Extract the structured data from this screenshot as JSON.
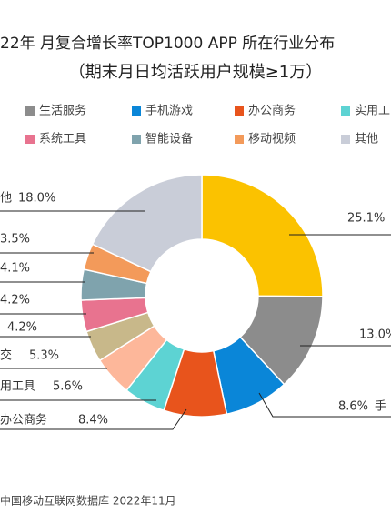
{
  "chart_data": {
    "type": "pie",
    "title": "22年 月复合增长率TOP1000 APP 所在行业分布",
    "subtitle": "（期末月日均活跃用户规模≥1万）",
    "legend": [
      {
        "name": "生活服务",
        "color": "#8c8c8c"
      },
      {
        "name": "手机游戏",
        "color": "#0a86d8"
      },
      {
        "name": "办公商务",
        "color": "#e8541c"
      },
      {
        "name": "实用工",
        "color": "#5dd3d3"
      },
      {
        "name": "系统工具",
        "color": "#e8738f"
      },
      {
        "name": "智能设备",
        "color": "#7fa3ad"
      },
      {
        "name": "移动视频",
        "color": "#f39a5a"
      },
      {
        "name": "其他",
        "color": "#c9cdd8"
      }
    ],
    "categories": [
      null,
      null,
      "手",
      "办公商务",
      "用工具",
      "交",
      null,
      null,
      null,
      null,
      "他"
    ],
    "values": [
      25.1,
      13.0,
      8.6,
      8.4,
      5.6,
      5.3,
      4.2,
      4.2,
      4.1,
      3.5,
      18.0
    ],
    "value_labels": [
      "25.1%",
      "13.0%",
      "8.6%",
      "8.4%",
      "5.6%",
      "5.3%",
      "4.2%",
      "4.2%",
      "4.1%",
      "3.5%",
      "18.0%"
    ],
    "colors": [
      "#fbc200",
      "#8c8c8c",
      "#0a86d8",
      "#e8541c",
      "#5dd3d3",
      "#fdb79a",
      "#c8b88a",
      "#e8738f",
      "#7fa3ad",
      "#f39a5a",
      "#c9cdd8"
    ],
    "source": "中国移动互联网数据库 2022年11月"
  }
}
